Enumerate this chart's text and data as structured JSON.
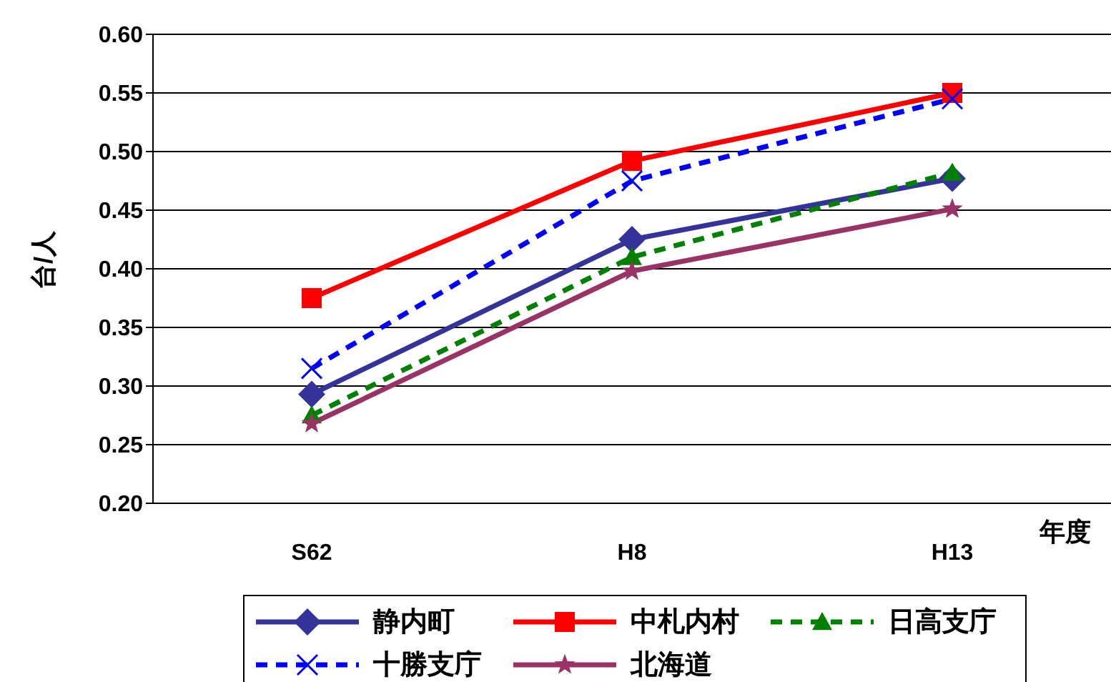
{
  "chart_data": {
    "type": "line",
    "ylabel": "台/人",
    "xlabel": "年度",
    "categories": [
      "S62",
      "H8",
      "H13"
    ],
    "series": [
      {
        "name": "静内町",
        "color": "#333399",
        "values": [
          0.293,
          0.425,
          0.477
        ],
        "marker": "diamond",
        "line_style": "solid"
      },
      {
        "name": "中札内村",
        "color": "#ff0000",
        "values": [
          0.375,
          0.492,
          0.55
        ],
        "marker": "square",
        "line_style": "solid"
      },
      {
        "name": "日高支庁",
        "color": "#008000",
        "values": [
          0.275,
          0.41,
          0.482
        ],
        "marker": "triangle",
        "line_style": "dashed"
      },
      {
        "name": "十勝支庁",
        "color": "#0000ff",
        "values": [
          0.315,
          0.475,
          0.545
        ],
        "marker": "cross",
        "line_style": "dashed"
      },
      {
        "name": "北海道",
        "color": "#993366",
        "values": [
          0.268,
          0.398,
          0.451
        ],
        "marker": "star",
        "line_style": "solid"
      }
    ],
    "ylim": [
      0.2,
      0.6
    ],
    "yticks": [
      {
        "value": 0.2,
        "label": "0.20"
      },
      {
        "value": 0.25,
        "label": "0.25"
      },
      {
        "value": 0.3,
        "label": "0.30"
      },
      {
        "value": 0.35,
        "label": "0.35"
      },
      {
        "value": 0.4,
        "label": "0.40"
      },
      {
        "value": 0.45,
        "label": "0.45"
      },
      {
        "value": 0.5,
        "label": "0.50"
      },
      {
        "value": 0.55,
        "label": "0.55"
      },
      {
        "value": 0.6,
        "label": "0.60"
      }
    ],
    "grid": "y",
    "legend": "bottom"
  }
}
